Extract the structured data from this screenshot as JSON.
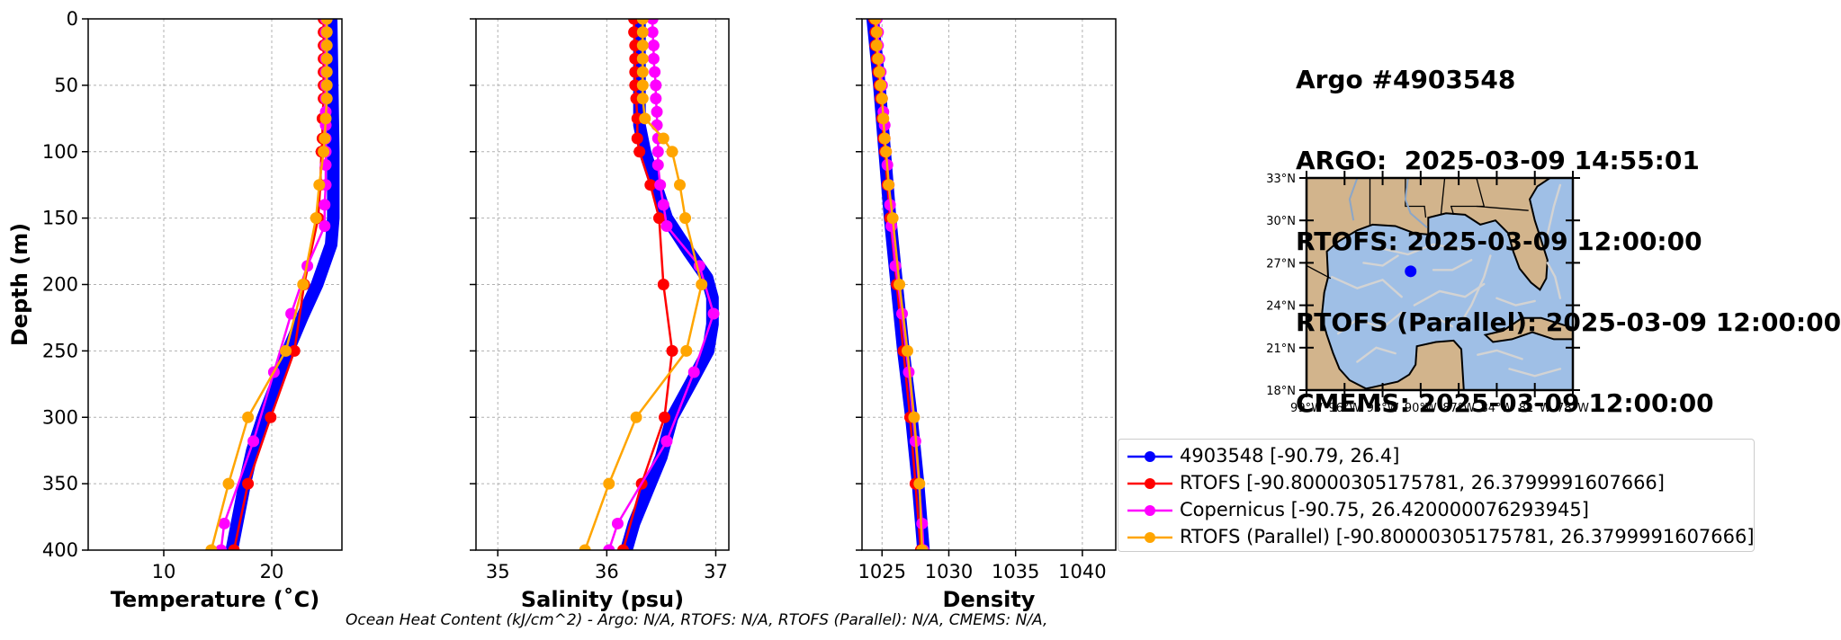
{
  "info": {
    "lines": [
      "Argo #4903548",
      "ARGO:  2025-03-09 14:55:01",
      "RTOFS: 2025-03-09 12:00:00",
      "RTOFS (Parallel): 2025-03-09 12:00:00",
      "CMEMS: 2025-03-09 12:00:00"
    ]
  },
  "footer": "Ocean Heat Content (kJ/cm^2) - Argo: N/A,  RTOFS: N/A,  RTOFS (Parallel): N/A,  CMEMS: N/A,",
  "colors": {
    "argo": "#0000ff",
    "rtofs": "#ff0000",
    "copernicus": "#ff00ff",
    "parallel": "#ffa500",
    "land": "#d2b48c",
    "ocean": "#9fbfe6",
    "currents": "#d3d3d3"
  },
  "legend": [
    {
      "key": "argo",
      "label": "4903548 [-90.79, 26.4]"
    },
    {
      "key": "rtofs",
      "label": "RTOFS [-90.80000305175781, 26.3799991607666]"
    },
    {
      "key": "copernicus",
      "label": "Copernicus [-90.75, 26.420000076293945]"
    },
    {
      "key": "parallel",
      "label": "RTOFS (Parallel) [-90.80000305175781, 26.3799991607666]"
    }
  ],
  "map": {
    "lon_ticks": [
      "99°W",
      "96°W",
      "93°W",
      "90°W",
      "87°W",
      "84°W",
      "81°W",
      "78°W"
    ],
    "lat_ticks": [
      "33°N",
      "30°N",
      "27°N",
      "24°N",
      "21°N",
      "18°N"
    ],
    "lon_range": [
      -99,
      -78
    ],
    "lat_range": [
      18,
      33
    ],
    "marker": {
      "lon": -90.79,
      "lat": 26.4
    }
  },
  "chart_data": [
    {
      "type": "line",
      "xlabel": "Temperature (˚C)",
      "ylabel": "Depth (m)",
      "xlim": [
        3,
        26.5
      ],
      "ylim": [
        400,
        0
      ],
      "xticks": [
        10,
        20
      ],
      "yticks": [
        0,
        50,
        100,
        150,
        200,
        250,
        300,
        350,
        400
      ],
      "grid": true,
      "series": [
        {
          "name": "4903548",
          "color": "argo",
          "thick": true,
          "depth": [
            0,
            50,
            100,
            150,
            170,
            200,
            225,
            250,
            275,
            300,
            325,
            350,
            375,
            400
          ],
          "values": [
            25.5,
            25.6,
            25.7,
            25.7,
            25.5,
            24.2,
            22.8,
            21.5,
            20.4,
            19.2,
            18.2,
            17.5,
            16.9,
            16.3
          ]
        },
        {
          "name": "RTOFS",
          "color": "rtofs",
          "depth": [
            0,
            10,
            20,
            30,
            40,
            50,
            60,
            75,
            90,
            100,
            125,
            150,
            200,
            250,
            300,
            350,
            400
          ],
          "values": [
            24.8,
            24.8,
            24.8,
            24.8,
            24.8,
            24.8,
            24.8,
            24.7,
            24.7,
            24.6,
            24.5,
            24.3,
            23.0,
            22.1,
            19.9,
            17.8,
            16.5
          ]
        },
        {
          "name": "Copernicus",
          "color": "copernicus",
          "depth": [
            0,
            10,
            20,
            30,
            40,
            50,
            60,
            70,
            80,
            90,
            100,
            110,
            125,
            140,
            156,
            186,
            222,
            266,
            318,
            380,
            400
          ],
          "values": [
            25.0,
            25.0,
            25.0,
            25.0,
            25.0,
            25.0,
            25.0,
            25.0,
            25.0,
            25.0,
            25.0,
            25.0,
            25.0,
            24.9,
            24.9,
            23.3,
            21.8,
            20.2,
            18.3,
            15.6,
            15.3
          ]
        },
        {
          "name": "RTOFS (Parallel)",
          "color": "parallel",
          "depth": [
            0,
            10,
            20,
            30,
            40,
            50,
            60,
            75,
            90,
            100,
            125,
            150,
            200,
            250,
            300,
            350,
            400
          ],
          "values": [
            25.1,
            25.1,
            25.1,
            25.1,
            25.1,
            25.1,
            25.1,
            25.0,
            24.9,
            24.8,
            24.4,
            24.1,
            22.9,
            21.3,
            17.8,
            16.0,
            14.4
          ]
        }
      ]
    },
    {
      "type": "line",
      "xlabel": "Salinity (psu)",
      "ylabel": "",
      "xlim": [
        34.8,
        37.12
      ],
      "ylim": [
        400,
        0
      ],
      "xticks": [
        35,
        36,
        37
      ],
      "yticks": [
        0,
        50,
        100,
        150,
        200,
        250,
        300,
        350,
        400
      ],
      "grid": true,
      "series": [
        {
          "name": "4903548",
          "color": "argo",
          "thick": true,
          "depth": [
            0,
            50,
            80,
            100,
            125,
            150,
            175,
            195,
            210,
            230,
            250,
            270,
            300,
            330,
            360,
            380,
            400
          ],
          "values": [
            36.3,
            36.3,
            36.3,
            36.35,
            36.45,
            36.55,
            36.75,
            36.92,
            36.97,
            36.97,
            36.93,
            36.8,
            36.6,
            36.5,
            36.35,
            36.25,
            36.18
          ]
        },
        {
          "name": "RTOFS",
          "color": "rtofs",
          "depth": [
            0,
            10,
            20,
            30,
            40,
            50,
            60,
            75,
            90,
            100,
            125,
            150,
            200,
            250,
            300,
            350,
            400
          ],
          "values": [
            36.25,
            36.25,
            36.26,
            36.26,
            36.26,
            36.26,
            36.27,
            36.28,
            36.28,
            36.3,
            36.4,
            36.48,
            36.52,
            36.6,
            36.53,
            36.32,
            36.15
          ]
        },
        {
          "name": "Copernicus",
          "color": "copernicus",
          "depth": [
            0,
            10,
            20,
            30,
            40,
            50,
            60,
            70,
            80,
            90,
            100,
            110,
            125,
            140,
            156,
            186,
            222,
            266,
            318,
            380,
            400
          ],
          "values": [
            36.42,
            36.42,
            36.43,
            36.43,
            36.44,
            36.45,
            36.45,
            36.46,
            36.46,
            36.47,
            36.47,
            36.47,
            36.49,
            36.52,
            36.55,
            36.85,
            36.98,
            36.8,
            36.55,
            36.1,
            36.02
          ]
        },
        {
          "name": "RTOFS (Parallel)",
          "color": "parallel",
          "depth": [
            0,
            10,
            20,
            30,
            40,
            50,
            60,
            75,
            90,
            100,
            125,
            150,
            200,
            250,
            300,
            350,
            400
          ],
          "values": [
            36.33,
            36.33,
            36.33,
            36.33,
            36.33,
            36.33,
            36.33,
            36.35,
            36.52,
            36.6,
            36.67,
            36.72,
            36.87,
            36.73,
            36.27,
            36.02,
            35.8
          ]
        }
      ]
    },
    {
      "type": "line",
      "xlabel": "Density",
      "ylabel": "",
      "xlim": [
        1023.5,
        1042.5
      ],
      "ylim": [
        400,
        0
      ],
      "xticks": [
        1025,
        1030,
        1035,
        1040
      ],
      "yticks": [
        0,
        50,
        100,
        150,
        200,
        250,
        300,
        350,
        400
      ],
      "grid": true,
      "series": [
        {
          "name": "4903548",
          "color": "argo",
          "thick": true,
          "depth": [
            0,
            50,
            100,
            150,
            200,
            250,
            300,
            350,
            400
          ],
          "values": [
            1024.3,
            1024.8,
            1025.2,
            1025.6,
            1026.1,
            1026.6,
            1027.2,
            1027.7,
            1028.1
          ]
        },
        {
          "name": "RTOFS",
          "color": "rtofs",
          "depth": [
            0,
            10,
            20,
            30,
            40,
            50,
            60,
            75,
            90,
            100,
            125,
            150,
            200,
            250,
            300,
            350,
            400
          ],
          "values": [
            1024.4,
            1024.5,
            1024.5,
            1024.6,
            1024.7,
            1024.8,
            1024.9,
            1025.0,
            1025.1,
            1025.2,
            1025.4,
            1025.6,
            1026.1,
            1026.6,
            1027.1,
            1027.5,
            1027.9
          ]
        },
        {
          "name": "Copernicus",
          "color": "copernicus",
          "depth": [
            0,
            10,
            20,
            30,
            40,
            50,
            60,
            70,
            80,
            90,
            100,
            110,
            125,
            140,
            156,
            186,
            222,
            266,
            318,
            380,
            400
          ],
          "values": [
            1024.6,
            1024.7,
            1024.7,
            1024.8,
            1024.9,
            1025.0,
            1025.0,
            1025.1,
            1025.2,
            1025.2,
            1025.3,
            1025.4,
            1025.5,
            1025.6,
            1025.7,
            1026.0,
            1026.5,
            1027.0,
            1027.5,
            1028.0,
            1028.1
          ]
        },
        {
          "name": "RTOFS (Parallel)",
          "color": "parallel",
          "depth": [
            0,
            10,
            20,
            30,
            40,
            50,
            60,
            75,
            90,
            100,
            125,
            150,
            200,
            250,
            300,
            350,
            400
          ],
          "values": [
            1024.5,
            1024.6,
            1024.6,
            1024.7,
            1024.8,
            1024.9,
            1025.0,
            1025.1,
            1025.2,
            1025.3,
            1025.5,
            1025.8,
            1026.3,
            1026.9,
            1027.4,
            1027.8,
            1028.0
          ]
        }
      ]
    }
  ]
}
